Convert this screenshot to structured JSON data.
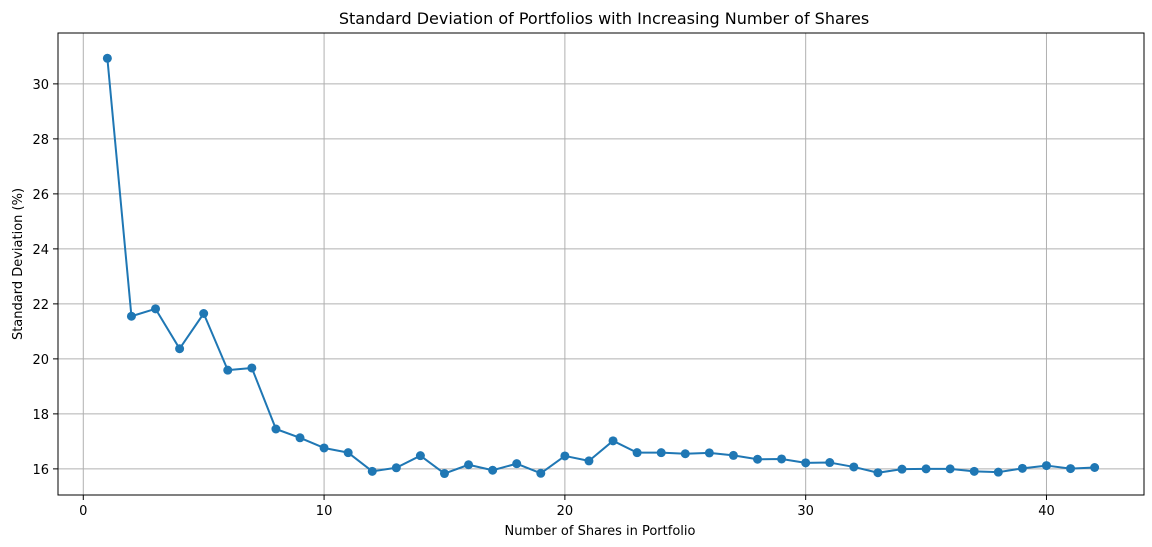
{
  "chart_data": {
    "type": "line",
    "title": "Standard Deviation of Portfolios with Increasing Number of Shares",
    "xlabel": "Number of Shares in Portfolio",
    "ylabel": "Standard Deviation (%)",
    "xlim": [
      -1.05,
      44.05
    ],
    "ylim": [
      15.05,
      31.85
    ],
    "xticks": [
      0,
      10,
      20,
      30,
      40
    ],
    "yticks": [
      16,
      18,
      20,
      22,
      24,
      26,
      28,
      30
    ],
    "grid": true,
    "marker": "circle",
    "color": "#1f77b4",
    "x": [
      1,
      2,
      3,
      4,
      5,
      6,
      7,
      8,
      9,
      10,
      11,
      12,
      13,
      14,
      15,
      16,
      17,
      18,
      19,
      20,
      21,
      22,
      23,
      24,
      25,
      26,
      27,
      28,
      29,
      30,
      31,
      32,
      33,
      34,
      35,
      36,
      37,
      38,
      39,
      40,
      41,
      42
    ],
    "series": [
      {
        "values": [
          30.93,
          21.55,
          21.82,
          20.37,
          21.65,
          19.59,
          19.67,
          17.45,
          17.13,
          16.76,
          16.59,
          15.91,
          16.04,
          16.48,
          15.83,
          16.15,
          15.95,
          16.19,
          15.84,
          16.47,
          16.29,
          17.02,
          16.59,
          16.59,
          16.55,
          16.58,
          16.49,
          16.35,
          16.36,
          16.22,
          16.23,
          16.07,
          15.86,
          15.99,
          16.0,
          16.0,
          15.91,
          15.88,
          16.02,
          16.12,
          16.01,
          16.05
        ]
      }
    ]
  }
}
